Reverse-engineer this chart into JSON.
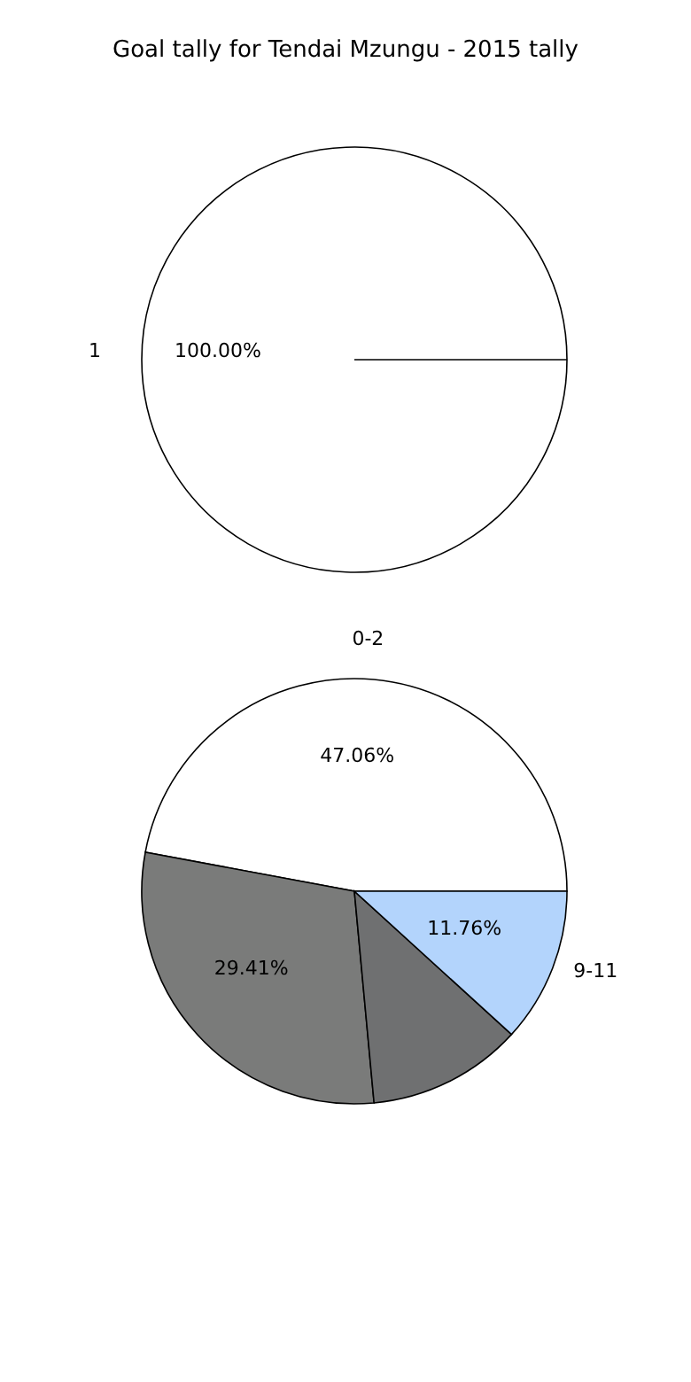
{
  "chart_data": [
    {
      "type": "pie",
      "title": "Goal tally for Tendai Mzungu - 2015 tally",
      "categories": [
        "1"
      ],
      "values": [
        100
      ],
      "colors": [
        "#ffffff"
      ],
      "value_labels": [
        "100.00%"
      ]
    },
    {
      "type": "pie",
      "categories": [
        "0-2",
        null,
        null,
        "9-11"
      ],
      "values": [
        47.06,
        29.41,
        11.76,
        11.76
      ],
      "colors": [
        "#ffffff",
        "#7a7b7a",
        "#6f7071",
        "#b3d4fc"
      ],
      "value_labels": [
        "47.06%",
        "29.41%",
        null,
        "11.76%"
      ]
    }
  ]
}
